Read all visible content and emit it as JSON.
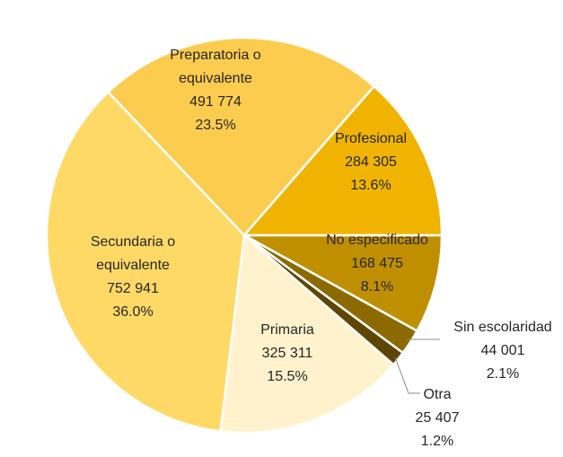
{
  "chart_data": {
    "type": "pie",
    "categories": [
      [
        "No especificado"
      ],
      [
        "Sin escolaridad"
      ],
      [
        "Otra"
      ],
      [
        "Primaria"
      ],
      [
        "Secundaria  o",
        "equivalente"
      ],
      [
        "Preparatoria o",
        "equivalente"
      ],
      [
        "Profesional"
      ]
    ],
    "values": [
      168475,
      44001,
      25407,
      325311,
      752941,
      491774,
      284305
    ],
    "value_labels": [
      "168 475",
      "44 001",
      "25 407",
      "325 311",
      "752 941",
      "491 774",
      "284 305"
    ],
    "percents": [
      8.1,
      2.1,
      1.2,
      15.5,
      36.0,
      23.5,
      13.6
    ],
    "percent_labels": [
      "8.1%",
      "2.1%",
      "1.2%",
      "15.5%",
      "36.0%",
      "23.5%",
      "13.6%"
    ],
    "colors": [
      "#bf8f00",
      "#8c6a00",
      "#5e4600",
      "#fff2cc",
      "#ffd966",
      "#fccc4e",
      "#f0b400"
    ]
  }
}
